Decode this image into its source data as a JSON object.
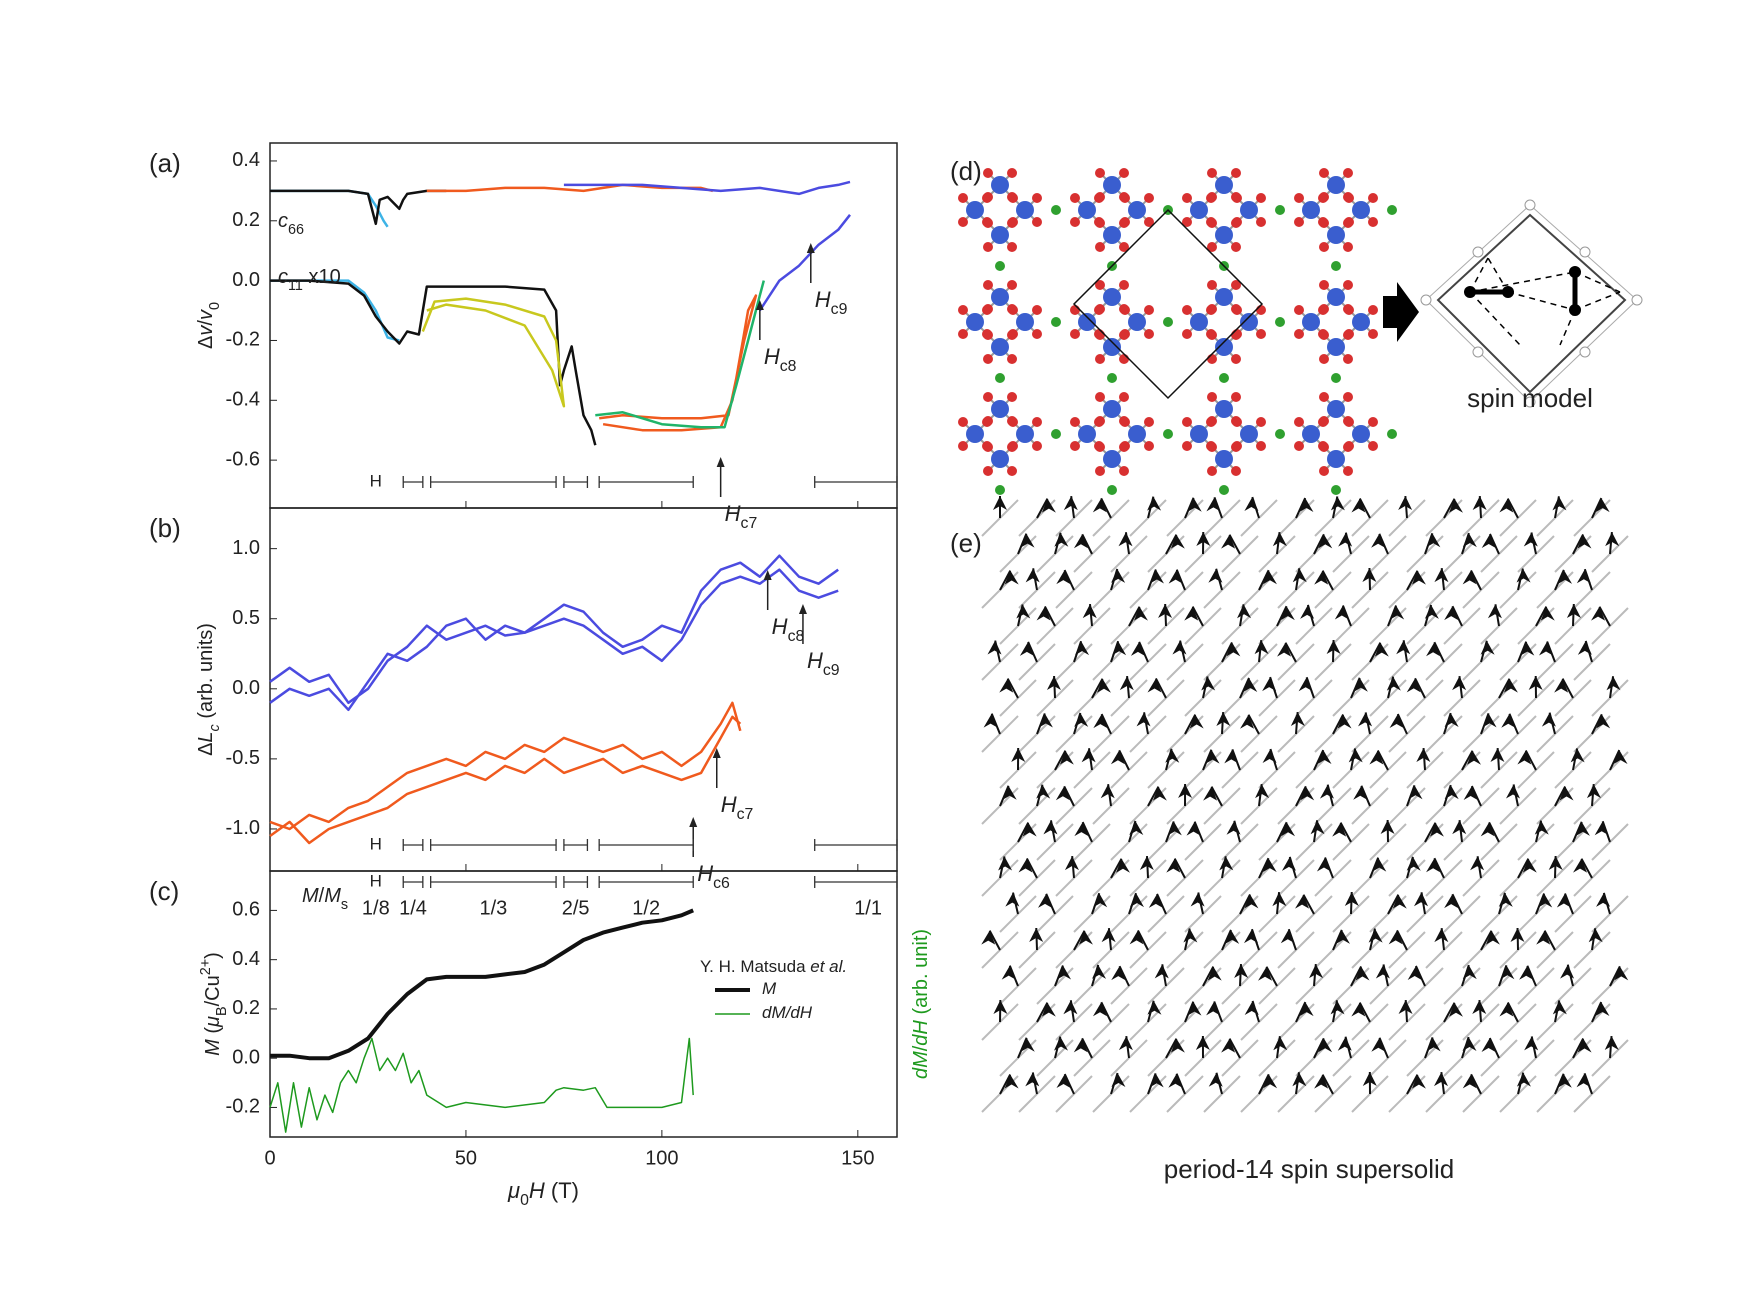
{
  "chart_data": [
    {
      "type": "line",
      "label": "(a)",
      "ylabel": [
        {
          "t": "Δ"
        },
        {
          "t": "v",
          "i": true
        },
        {
          "t": "/"
        },
        {
          "t": "v",
          "i": true
        },
        {
          "t": "0",
          "sub": true
        }
      ],
      "ylim": [
        -0.76,
        0.46
      ],
      "yticks": [
        0.4,
        0.2,
        {
          "value": 0,
          "label": "0.0"
        },
        -0.2,
        -0.4,
        -0.6
      ],
      "series": [
        {
          "color": "#3db3e6",
          "x": [
            0,
            10,
            20,
            25,
            27,
            29,
            30
          ],
          "values": [
            0.3,
            0.3,
            0.3,
            0.29,
            0.25,
            0.2,
            0.18
          ]
        },
        {
          "color": "#111111",
          "x": [
            0,
            10,
            20,
            25,
            27,
            28,
            30,
            33,
            34,
            35,
            40,
            45
          ],
          "values": [
            0.3,
            0.3,
            0.3,
            0.29,
            0.19,
            0.27,
            0.28,
            0.24,
            0.27,
            0.29,
            0.3,
            0.3
          ]
        },
        {
          "color": "#f05a1e",
          "x": [
            40,
            50,
            60,
            70,
            80,
            90,
            100,
            110,
            113
          ],
          "values": [
            0.3,
            0.3,
            0.31,
            0.31,
            0.3,
            0.32,
            0.31,
            0.31,
            0.3
          ]
        },
        {
          "color": "#4b4be0",
          "x": [
            75,
            85,
            95,
            105,
            115,
            125,
            135,
            140,
            145,
            148
          ],
          "values": [
            0.32,
            0.32,
            0.32,
            0.31,
            0.3,
            0.31,
            0.29,
            0.31,
            0.32,
            0.33
          ]
        },
        {
          "color": "#3db3e6",
          "x": [
            0,
            10,
            20,
            24,
            27,
            30,
            33
          ],
          "values": [
            0,
            0,
            0,
            -0.04,
            -0.1,
            -0.19,
            -0.2
          ]
        },
        {
          "color": "#111111",
          "x": [
            0,
            10,
            20,
            24,
            27,
            30,
            33,
            35,
            38,
            40,
            50,
            60,
            70,
            73,
            74,
            75,
            77,
            78,
            80,
            82,
            83
          ],
          "values": [
            0,
            0,
            -0.01,
            -0.05,
            -0.12,
            -0.17,
            -0.21,
            -0.17,
            -0.18,
            -0.02,
            -0.02,
            -0.02,
            -0.03,
            -0.1,
            -0.35,
            -0.3,
            -0.22,
            -0.3,
            -0.45,
            -0.5,
            -0.55
          ]
        },
        {
          "color": "#c8c81e",
          "x": [
            39,
            42,
            50,
            60,
            70,
            73,
            75,
            72,
            65,
            55,
            45,
            40
          ],
          "values": [
            -0.17,
            -0.07,
            -0.06,
            -0.08,
            -0.12,
            -0.2,
            -0.42,
            -0.3,
            -0.15,
            -0.1,
            -0.08,
            -0.1
          ]
        },
        {
          "color": "#f05a1e",
          "x": [
            85,
            95,
            105,
            115,
            118,
            120,
            122,
            124,
            121,
            117,
            110,
            100,
            90,
            84
          ],
          "values": [
            -0.48,
            -0.5,
            -0.5,
            -0.49,
            -0.4,
            -0.25,
            -0.1,
            -0.05,
            -0.2,
            -0.45,
            -0.46,
            -0.46,
            -0.45,
            -0.46
          ]
        },
        {
          "color": "#20b46a",
          "x": [
            83,
            90,
            100,
            110,
            116,
            119,
            122,
            125,
            126
          ],
          "values": [
            -0.45,
            -0.44,
            -0.48,
            -0.49,
            -0.49,
            -0.35,
            -0.2,
            -0.05,
            0
          ]
        },
        {
          "color": "#4b4be0",
          "x": [
            125,
            130,
            135,
            140,
            145,
            148
          ],
          "values": [
            -0.1,
            0,
            0.05,
            0.12,
            0.17,
            0.22
          ]
        }
      ],
      "curve_labels": [
        [
          {
            "t": "c",
            "i": true
          },
          {
            "t": "11",
            "sub": true
          },
          {
            "t": " x10"
          }
        ],
        [
          {
            "t": "c",
            "i": true
          },
          {
            "t": "66",
            "sub": true
          }
        ]
      ],
      "annotations": [
        {
          "x": 115,
          "label": [
            {
              "t": "H",
              "i": true
            },
            {
              "t": "c7",
              "sub": true
            }
          ]
        },
        {
          "x": 125,
          "label": [
            {
              "t": "H",
              "i": true
            },
            {
              "t": "c8",
              "sub": true
            }
          ]
        },
        {
          "x": 138,
          "label": [
            {
              "t": "H",
              "i": true
            },
            {
              "t": "c9",
              "sub": true
            }
          ]
        }
      ]
    },
    {
      "type": "line",
      "label": "(b)",
      "ylabel": [
        {
          "t": "Δ"
        },
        {
          "t": "L",
          "i": true
        },
        {
          "t": "c",
          "i": true,
          "sub": true
        },
        {
          "t": " (arb. units)"
        }
      ],
      "ylim": [
        -1.3,
        1.29
      ],
      "yticks": [
        {
          "value": 1,
          "label": "1.0"
        },
        0.5,
        {
          "value": 0,
          "label": "0.0"
        },
        -0.5,
        {
          "value": -1,
          "label": "-1.0"
        }
      ],
      "series": [
        {
          "color": "#4b4be0",
          "x": [
            0,
            5,
            10,
            15,
            20,
            25,
            30,
            35,
            40,
            45,
            50,
            55,
            60,
            65,
            70,
            75,
            80,
            85,
            90,
            95,
            100,
            105,
            110,
            115,
            120,
            125,
            130,
            135,
            140,
            145
          ],
          "values": [
            0.05,
            0.15,
            0.05,
            0.1,
            -0.1,
            0,
            0.2,
            0.3,
            0.45,
            0.35,
            0.4,
            0.45,
            0.38,
            0.4,
            0.5,
            0.6,
            0.55,
            0.4,
            0.3,
            0.35,
            0.45,
            0.4,
            0.7,
            0.85,
            0.9,
            0.8,
            0.95,
            0.8,
            0.75,
            0.85
          ]
        },
        {
          "color": "#4b4be0",
          "x": [
            0,
            5,
            10,
            15,
            20,
            25,
            30,
            35,
            40,
            45,
            50,
            55,
            60,
            65,
            70,
            75,
            80,
            85,
            90,
            95,
            100,
            105,
            110,
            115,
            120,
            125,
            130,
            135,
            140,
            145
          ],
          "values": [
            -0.1,
            0,
            -0.05,
            0,
            -0.15,
            0.05,
            0.25,
            0.2,
            0.3,
            0.45,
            0.5,
            0.35,
            0.45,
            0.4,
            0.45,
            0.5,
            0.45,
            0.35,
            0.25,
            0.3,
            0.2,
            0.35,
            0.6,
            0.75,
            0.8,
            0.75,
            0.85,
            0.7,
            0.65,
            0.7
          ]
        },
        {
          "color": "#f05a1e",
          "x": [
            0,
            5,
            10,
            15,
            20,
            25,
            30,
            35,
            40,
            45,
            50,
            55,
            60,
            65,
            70,
            75,
            80,
            85,
            90,
            95,
            100,
            105,
            110,
            115,
            118,
            120
          ],
          "values": [
            -0.95,
            -1,
            -0.9,
            -0.95,
            -0.85,
            -0.8,
            -0.7,
            -0.6,
            -0.55,
            -0.5,
            -0.55,
            -0.45,
            -0.5,
            -0.4,
            -0.45,
            -0.35,
            -0.4,
            -0.45,
            -0.4,
            -0.5,
            -0.45,
            -0.55,
            -0.45,
            -0.25,
            -0.1,
            -0.3
          ]
        },
        {
          "color": "#f05a1e",
          "x": [
            0,
            5,
            10,
            15,
            20,
            25,
            30,
            35,
            40,
            45,
            50,
            55,
            60,
            65,
            70,
            75,
            80,
            85,
            90,
            95,
            100,
            105,
            110,
            115,
            118,
            120
          ],
          "values": [
            -1.05,
            -0.95,
            -1.1,
            -1,
            -0.95,
            -0.9,
            -0.85,
            -0.75,
            -0.7,
            -0.65,
            -0.6,
            -0.65,
            -0.55,
            -0.6,
            -0.5,
            -0.6,
            -0.55,
            -0.5,
            -0.6,
            -0.55,
            -0.6,
            -0.65,
            -0.6,
            -0.35,
            -0.2,
            -0.25
          ]
        }
      ],
      "annotations": [
        {
          "x": 127,
          "label": [
            {
              "t": "H",
              "i": true
            },
            {
              "t": "c8",
              "sub": true
            }
          ]
        },
        {
          "x": 136,
          "label": [
            {
              "t": "H",
              "i": true
            },
            {
              "t": "c9",
              "sub": true
            }
          ]
        },
        {
          "x": 114,
          "label": [
            {
              "t": "H",
              "i": true
            },
            {
              "t": "c7",
              "sub": true
            }
          ]
        },
        {
          "x": 108,
          "label": [
            {
              "t": "H",
              "i": true
            },
            {
              "t": "c6",
              "sub": true
            }
          ]
        }
      ]
    },
    {
      "type": "line",
      "label": "(c)",
      "ylabel": [
        {
          "t": "M",
          "i": true
        },
        {
          "t": " ("
        },
        {
          "t": "μ",
          "i": true
        },
        {
          "t": "B",
          "sub": true
        },
        {
          "t": "/Cu"
        },
        {
          "t": "2+",
          "sup": true
        },
        {
          "t": ")"
        }
      ],
      "y2label": [
        {
          "t": "dM",
          "i": true
        },
        {
          "t": "/"
        },
        {
          "t": "dH",
          "i": true
        },
        {
          "t": " (arb. unit)"
        }
      ],
      "xlabel": [
        {
          "t": "μ",
          "i": true
        },
        {
          "t": "0",
          "sub": true
        },
        {
          "t": "H",
          "i": true
        },
        {
          "t": " (T)"
        }
      ],
      "xlim": [
        0,
        160
      ],
      "xticks": [
        0,
        50,
        100,
        150
      ],
      "ylim": [
        -0.32,
        0.76
      ],
      "yticks": [
        0.6,
        0.4,
        0.2,
        {
          "value": 0,
          "label": "0.0"
        },
        -0.2
      ],
      "legend_title": [
        {
          "t": "Y. H. Matsuda "
        },
        {
          "t": "et al.",
          "i": true
        }
      ],
      "series": [
        {
          "name": [
            {
              "t": "M",
              "i": true
            }
          ],
          "color": "#111111",
          "width": 4,
          "x": [
            0,
            5,
            10,
            15,
            20,
            25,
            30,
            35,
            40,
            45,
            50,
            55,
            60,
            65,
            70,
            75,
            80,
            85,
            90,
            95,
            100,
            105,
            108
          ],
          "values": [
            0.01,
            0.01,
            0,
            0,
            0.03,
            0.08,
            0.18,
            0.26,
            0.32,
            0.33,
            0.33,
            0.33,
            0.34,
            0.35,
            0.38,
            0.43,
            0.48,
            0.51,
            0.53,
            0.55,
            0.56,
            0.58,
            0.6
          ]
        },
        {
          "name": [
            {
              "t": "dM/dH",
              "i": true
            }
          ],
          "color": "#1e9a1e",
          "width": 1.5,
          "x": [
            0,
            2,
            4,
            6,
            8,
            10,
            12,
            14,
            16,
            18,
            20,
            22,
            24,
            26,
            28,
            30,
            32,
            34,
            36,
            38,
            40,
            45,
            50,
            60,
            70,
            73,
            75,
            80,
            83,
            86,
            90,
            100,
            105,
            107,
            108
          ],
          "values": [
            -0.2,
            -0.1,
            -0.3,
            -0.1,
            -0.28,
            -0.12,
            -0.25,
            -0.15,
            -0.22,
            -0.1,
            -0.05,
            -0.1,
            0,
            0.08,
            -0.05,
            0,
            -0.05,
            0.02,
            -0.1,
            -0.05,
            -0.15,
            -0.2,
            -0.18,
            -0.2,
            -0.18,
            -0.13,
            -0.12,
            -0.13,
            -0.12,
            -0.2,
            -0.2,
            -0.2,
            -0.18,
            0.08,
            -0.15
          ]
        }
      ],
      "plateau_title": [
        {
          "t": "M",
          "i": true
        },
        {
          "t": "/"
        },
        {
          "t": "M",
          "i": true
        },
        {
          "t": "s",
          "sub": true
        }
      ],
      "plateaus": [
        {
          "label": "1/8",
          "marker": "H",
          "range": [
            26,
            28
          ]
        },
        {
          "label": "1/4",
          "range": [
            34,
            39
          ]
        },
        {
          "label": "1/3",
          "range": [
            41,
            73
          ]
        },
        {
          "label": "2/5",
          "range": [
            75,
            81
          ]
        },
        {
          "label": "1/2",
          "range": [
            84,
            108
          ]
        },
        {
          "label": "1/1",
          "range": [
            139,
            160
          ]
        }
      ]
    }
  ],
  "panels": {
    "d_label": "(d)",
    "e_label": "(e)",
    "spin_model": "spin model",
    "supersolid": "period-14 spin supersolid"
  }
}
